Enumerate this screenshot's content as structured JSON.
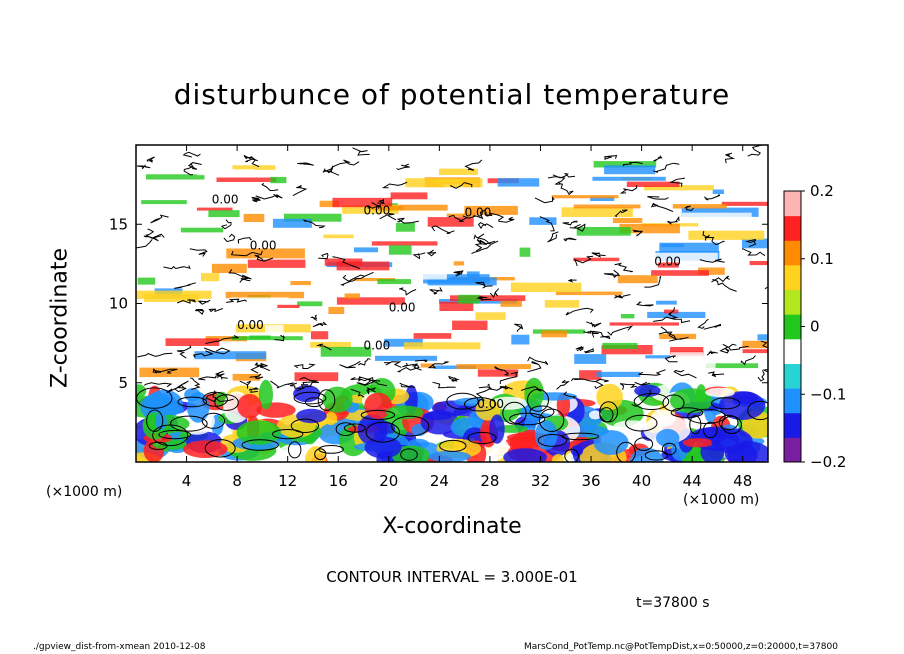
{
  "chart_data": {
    "type": "heatmap",
    "title": "disturbunce of potential temperature",
    "xlabel": "X-coordinate",
    "ylabel": "Z-coordinate",
    "x_unit": "(×1000 m)",
    "xlim": [
      0,
      50
    ],
    "ylim": [
      0,
      20
    ],
    "x_ticks": [
      4,
      8,
      12,
      16,
      20,
      24,
      28,
      32,
      36,
      40,
      44,
      48
    ],
    "y_ticks": [
      5,
      10,
      15
    ],
    "colorbar_ticks": [
      0.2,
      0.1,
      0,
      -0.1,
      -0.2
    ],
    "colorbar_tick_labels": [
      "0.2",
      "0.1",
      "0",
      "−0.1",
      "−0.2"
    ],
    "colorbar_range": [
      -0.2,
      0.2
    ],
    "colormap": [
      "#7a1fa2",
      "#1a1ae6",
      "#1e90ff",
      "#27d3d3",
      "#ffffff",
      "#22c81e",
      "#b4e61e",
      "#ffd21e",
      "#ff8c00",
      "#ff2020",
      "#ffb4b4"
    ],
    "contour_label": "0.00",
    "contour_interval_text": "CONTOUR INTERVAL = 3.000E-01",
    "time_text": "t=37800 s",
    "bands": [
      {
        "z": [
          0,
          4.5
        ],
        "pattern": "convective cells",
        "colors": [
          "#ff2020",
          "#ffd21e",
          "#22c81e",
          "#1e90ff",
          "#1a1ae6",
          "#ffffff"
        ]
      },
      {
        "z": [
          4.5,
          5.5
        ],
        "pattern": "dense contours",
        "colors": [
          "#ffffff"
        ]
      },
      {
        "z": [
          5.5,
          19
        ],
        "pattern": "layered strips",
        "colors": [
          "#ffffff",
          "#1e90ff",
          "#22c81e",
          "#ffd21e",
          "#ff8c00",
          "#ff2020"
        ]
      }
    ]
  },
  "footer": {
    "left": "./gpview_dist-from-xmean  2010-12-08",
    "right": "MarsCond_PotTemp.nc@PotTempDist,x=0:50000,z=0:20000,t=37800"
  }
}
